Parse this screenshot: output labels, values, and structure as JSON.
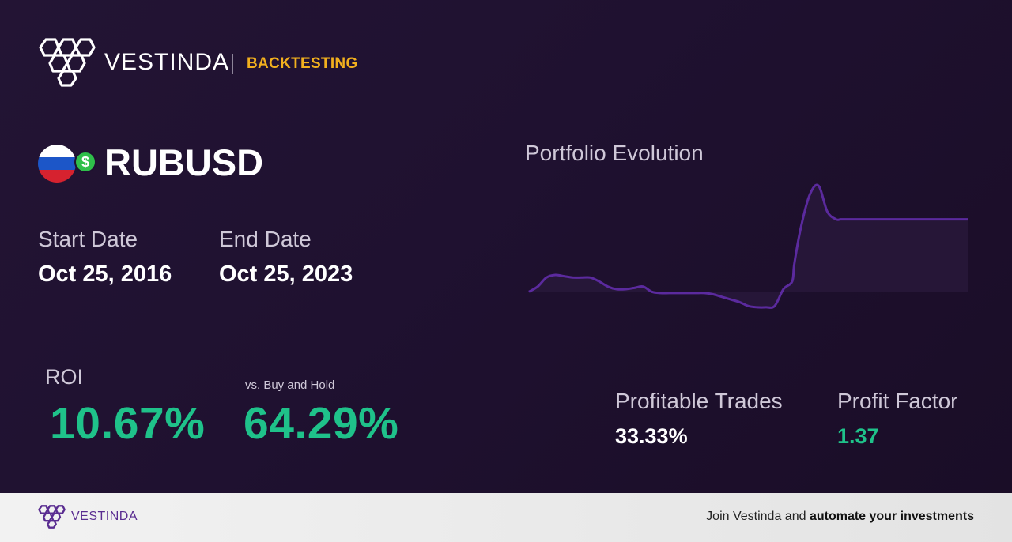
{
  "header": {
    "brand": "VESTINDA",
    "section": "BACKTESTING"
  },
  "asset": {
    "symbol": "RUBUSD",
    "coin_glyph": "$"
  },
  "dates": {
    "start_label": "Start Date",
    "start_value": "Oct 25, 2016",
    "end_label": "End Date",
    "end_value": "Oct 25, 2023"
  },
  "roi": {
    "label": "ROI",
    "value": "10.67%"
  },
  "vs_buy_hold": {
    "label": "vs. Buy and Hold",
    "value": "64.29%"
  },
  "stats": {
    "profitable_trades_label": "Profitable Trades",
    "profitable_trades_value": "33.33%",
    "profit_factor_label": "Profit Factor",
    "profit_factor_value": "1.37"
  },
  "chart_data": {
    "type": "line",
    "title": "Portfolio Evolution",
    "xlabel": "",
    "ylabel": "",
    "x": [
      0,
      0.02,
      0.04,
      0.06,
      0.08,
      0.1,
      0.12,
      0.14,
      0.16,
      0.18,
      0.2,
      0.22,
      0.24,
      0.26,
      0.28,
      0.3,
      0.32,
      0.34,
      0.36,
      0.38,
      0.4,
      0.42,
      0.44,
      0.46,
      0.48,
      0.5,
      0.52,
      0.54,
      0.56,
      0.58,
      0.6,
      0.605,
      0.62,
      0.64,
      0.66,
      0.68,
      0.7,
      0.71,
      0.72,
      0.74,
      0.76,
      0.78,
      0.8,
      0.81,
      0.82,
      0.83,
      0.84,
      0.86,
      0.88,
      0.9,
      0.92,
      0.94,
      0.96,
      0.98,
      1.0
    ],
    "series": [
      {
        "values": [
          100,
          104,
          111,
          113,
          112,
          111,
          111,
          111,
          108,
          104,
          102,
          102,
          103,
          104,
          100,
          99,
          99,
          99,
          99,
          99,
          99,
          98,
          96,
          94,
          92,
          89,
          88,
          88,
          89,
          102,
          108,
          122,
          150,
          175,
          182,
          162,
          156,
          156,
          156,
          156,
          156,
          156,
          156,
          156,
          156,
          156,
          156,
          156,
          156,
          156,
          156,
          156,
          156,
          156,
          156
        ]
      }
    ],
    "ylim": [
      80,
      190
    ],
    "grid": false,
    "legend": "none",
    "colors": {
      "line": "#5b2a9e",
      "fill": "#2a1a3c"
    }
  },
  "footer": {
    "brand": "VESTINDA",
    "cta_prefix": "Join Vestinda and ",
    "cta_bold": "automate your investments"
  },
  "colors": {
    "accent_gold": "#f2b01e",
    "positive_green": "#1fc28a",
    "brand_purple": "#5a2d91"
  }
}
